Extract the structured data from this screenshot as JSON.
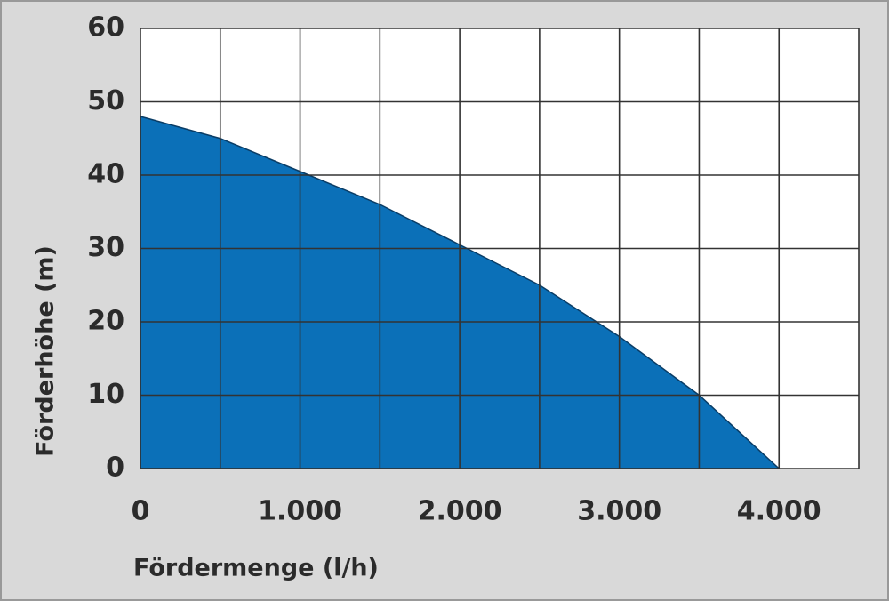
{
  "chart_data": {
    "type": "area",
    "x": [
      0,
      500,
      1000,
      1500,
      2000,
      2500,
      3000,
      3500,
      4000
    ],
    "values": [
      48,
      45,
      40.5,
      36,
      30.5,
      25,
      18,
      10,
      0
    ],
    "color": "#0b70b8",
    "x_label": "Fördermenge (l/h)",
    "y_label": "Förderhöhe (m)",
    "xlim": [
      0,
      4500
    ],
    "xticks": [
      0,
      {
        "value": 1000,
        "label": "1.000"
      },
      {
        "value": 2000,
        "label": "2.000"
      },
      {
        "value": 3000,
        "label": "3.000"
      },
      {
        "value": 4000,
        "label": "4.000"
      }
    ],
    "xminorticks": [
      500,
      1500,
      2500,
      3500,
      4500
    ],
    "ylim": [
      0,
      60
    ],
    "yticks": [
      0,
      10,
      20,
      30,
      40,
      50,
      60
    ],
    "grid": true
  }
}
